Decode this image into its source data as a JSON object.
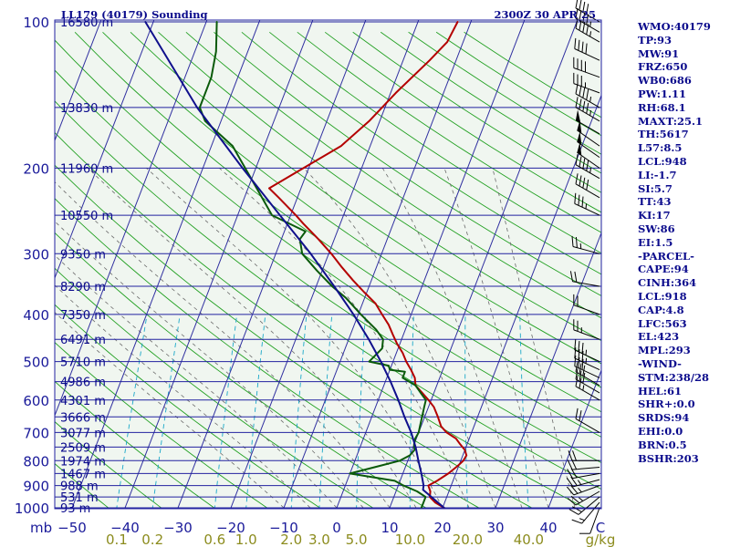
{
  "chart_data": {
    "type": "line",
    "title": "LL179 (40179) Sounding",
    "timestamp": "2300Z 30 APR 25",
    "pressure_axis": {
      "unit_label": "mb",
      "ticks": [
        100,
        200,
        300,
        400,
        500,
        600,
        700,
        800,
        900,
        1000
      ],
      "range": [
        1000,
        100
      ],
      "scale": "log"
    },
    "temperature_axis": {
      "unit": "°C",
      "ticks": [
        -50,
        -40,
        -30,
        -20,
        -10,
        0,
        10,
        20,
        30,
        40
      ],
      "skew": "skew-T"
    },
    "mixing_ratio_axis": {
      "unit": "g/kg",
      "ticks": [
        "0.1",
        "0.2",
        "0.6",
        "1.0",
        "2.0",
        "3.0",
        "5.0",
        "10.0",
        "20.0",
        "40.0"
      ]
    },
    "height_labels": [
      {
        "p": 100,
        "label": "16580 m"
      },
      {
        "p": 150,
        "label": "13830 m"
      },
      {
        "p": 200,
        "label": "11960 m"
      },
      {
        "p": 250,
        "label": "10550 m"
      },
      {
        "p": 300,
        "label": "9350 m"
      },
      {
        "p": 350,
        "label": "8290 m"
      },
      {
        "p": 400,
        "label": "7350 m"
      },
      {
        "p": 450,
        "label": "6491 m"
      },
      {
        "p": 500,
        "label": "5710 m"
      },
      {
        "p": 550,
        "label": "4986 m"
      },
      {
        "p": 600,
        "label": "4301 m"
      },
      {
        "p": 650,
        "label": "3666 m"
      },
      {
        "p": 700,
        "label": "3077 m"
      },
      {
        "p": 750,
        "label": "2509 m"
      },
      {
        "p": 800,
        "label": "1974 m"
      },
      {
        "p": 850,
        "label": "1467 m"
      },
      {
        "p": 900,
        "label": "988 m"
      },
      {
        "p": 950,
        "label": "531 m"
      },
      {
        "p": 1000,
        "label": "93 m"
      }
    ],
    "series": [
      {
        "id": "temperature",
        "color": "#b40000",
        "points": [
          [
            1000,
            20.3
          ],
          [
            975,
            18.2
          ],
          [
            950,
            16.8
          ],
          [
            925,
            16.5
          ],
          [
            900,
            15.7
          ],
          [
            880,
            17.0
          ],
          [
            850,
            18.6
          ],
          [
            820,
            19.8
          ],
          [
            800,
            20.5
          ],
          [
            780,
            20.7
          ],
          [
            760,
            20.0
          ],
          [
            740,
            18.7
          ],
          [
            720,
            17.5
          ],
          [
            700,
            15.3
          ],
          [
            680,
            13.8
          ],
          [
            650,
            12.5
          ],
          [
            620,
            11.0
          ],
          [
            600,
            9.5
          ],
          [
            580,
            7.8
          ],
          [
            560,
            6.0
          ],
          [
            540,
            5.3
          ],
          [
            520,
            4.0
          ],
          [
            500,
            2.5
          ],
          [
            480,
            1.2
          ],
          [
            460,
            -0.5
          ],
          [
            440,
            -2.0
          ],
          [
            420,
            -3.5
          ],
          [
            400,
            -5.5
          ],
          [
            380,
            -7.5
          ],
          [
            360,
            -10.5
          ],
          [
            340,
            -13.5
          ],
          [
            320,
            -16.5
          ],
          [
            300,
            -19.5
          ],
          [
            280,
            -23.0
          ],
          [
            260,
            -27.0
          ],
          [
            250,
            -29.0
          ],
          [
            230,
            -33.5
          ],
          [
            220,
            -36.0
          ],
          [
            200,
            -31.0
          ],
          [
            180,
            -25.5
          ],
          [
            160,
            -22.0
          ],
          [
            140,
            -19.0
          ],
          [
            120,
            -15.0
          ],
          [
            110,
            -13.0
          ],
          [
            100,
            -12.5
          ]
        ]
      },
      {
        "id": "dewpoint",
        "color": "#0a5a0a",
        "points": [
          [
            1000,
            16.0
          ],
          [
            975,
            16.0
          ],
          [
            950,
            16.0
          ],
          [
            925,
            14.0
          ],
          [
            900,
            11.0
          ],
          [
            880,
            9.0
          ],
          [
            850,
            0.0
          ],
          [
            820,
            5.0
          ],
          [
            800,
            8.5
          ],
          [
            780,
            10.0
          ],
          [
            760,
            10.5
          ],
          [
            740,
            10.0
          ],
          [
            720,
            9.8
          ],
          [
            700,
            10.0
          ],
          [
            680,
            9.8
          ],
          [
            650,
            9.5
          ],
          [
            620,
            9.2
          ],
          [
            600,
            9.0
          ],
          [
            580,
            7.5
          ],
          [
            560,
            6.0
          ],
          [
            540,
            3.0
          ],
          [
            525,
            3.0
          ],
          [
            520,
            0.0
          ],
          [
            510,
            -0.5
          ],
          [
            500,
            -4.5
          ],
          [
            470,
            -3.0
          ],
          [
            450,
            -3.5
          ],
          [
            430,
            -5.5
          ],
          [
            400,
            -9.5
          ],
          [
            370,
            -13.5
          ],
          [
            350,
            -17.0
          ],
          [
            325,
            -21.0
          ],
          [
            300,
            -25.0
          ],
          [
            280,
            -26.5
          ],
          [
            270,
            -26.0
          ],
          [
            250,
            -33.5
          ],
          [
            225,
            -37.5
          ],
          [
            200,
            -42.0
          ],
          [
            180,
            -46.0
          ],
          [
            160,
            -53.0
          ],
          [
            150,
            -55.0
          ],
          [
            130,
            -55.0
          ],
          [
            115,
            -56.0
          ],
          [
            100,
            -58.0
          ]
        ]
      },
      {
        "id": "parcel",
        "color": "#10108c",
        "points": [
          [
            1000,
            20.3
          ],
          [
            918,
            15.0
          ],
          [
            900,
            14.8
          ],
          [
            850,
            13.5
          ],
          [
            800,
            12.0
          ],
          [
            750,
            10.5
          ],
          [
            700,
            8.6
          ],
          [
            650,
            6.2
          ],
          [
            600,
            3.8
          ],
          [
            550,
            1.0
          ],
          [
            500,
            -2.3
          ],
          [
            450,
            -6.2
          ],
          [
            400,
            -10.9
          ],
          [
            350,
            -16.6
          ],
          [
            300,
            -23.4
          ],
          [
            250,
            -32.0
          ],
          [
            200,
            -42.5
          ],
          [
            150,
            -55.5
          ],
          [
            100,
            -71.5
          ]
        ]
      }
    ],
    "wind_barbs": [
      {
        "p": 1000,
        "dir": 200,
        "spd": 10
      },
      {
        "p": 975,
        "dir": 220,
        "spd": 15
      },
      {
        "p": 950,
        "dir": 230,
        "spd": 20
      },
      {
        "p": 925,
        "dir": 240,
        "spd": 25
      },
      {
        "p": 900,
        "dir": 250,
        "spd": 25
      },
      {
        "p": 875,
        "dir": 255,
        "spd": 25
      },
      {
        "p": 850,
        "dir": 260,
        "spd": 20
      },
      {
        "p": 825,
        "dir": 265,
        "spd": 20
      },
      {
        "p": 800,
        "dir": 270,
        "spd": 20
      },
      {
        "p": 700,
        "dir": 300,
        "spd": 20
      },
      {
        "p": 600,
        "dir": 300,
        "spd": 25
      },
      {
        "p": 580,
        "dir": 300,
        "spd": 30
      },
      {
        "p": 560,
        "dir": 300,
        "spd": 30
      },
      {
        "p": 540,
        "dir": 295,
        "spd": 30
      },
      {
        "p": 520,
        "dir": 295,
        "spd": 35
      },
      {
        "p": 500,
        "dir": 295,
        "spd": 35
      },
      {
        "p": 450,
        "dir": 290,
        "spd": 25
      },
      {
        "p": 400,
        "dir": 290,
        "spd": 20
      },
      {
        "p": 350,
        "dir": 280,
        "spd": 20
      },
      {
        "p": 300,
        "dir": 285,
        "spd": 25
      },
      {
        "p": 250,
        "dir": 295,
        "spd": 35
      },
      {
        "p": 230,
        "dir": 300,
        "spd": 40
      },
      {
        "p": 210,
        "dir": 300,
        "spd": 45
      },
      {
        "p": 200,
        "dir": 305,
        "spd": 50
      },
      {
        "p": 190,
        "dir": 305,
        "spd": 50
      },
      {
        "p": 180,
        "dir": 305,
        "spd": 50
      },
      {
        "p": 170,
        "dir": 300,
        "spd": 50
      },
      {
        "p": 160,
        "dir": 300,
        "spd": 45
      },
      {
        "p": 150,
        "dir": 300,
        "spd": 45
      },
      {
        "p": 140,
        "dir": 290,
        "spd": 35
      },
      {
        "p": 130,
        "dir": 290,
        "spd": 40
      },
      {
        "p": 120,
        "dir": 295,
        "spd": 40
      },
      {
        "p": 110,
        "dir": 300,
        "spd": 45
      },
      {
        "p": 105,
        "dir": 300,
        "spd": 45
      },
      {
        "p": 100,
        "dir": 300,
        "spd": 40
      }
    ]
  },
  "indices": {
    "wmo": "WMO:40179",
    "tp": "TP:93",
    "mw": "MW:91",
    "frz": "FRZ:650",
    "wb0": "WB0:686",
    "pw": "PW:1.11",
    "rh": "RH:68.1",
    "maxt": "MAXT:25.1",
    "th": "TH:5617",
    "l57": "L57:8.5",
    "lcl": "LCL:948",
    "li": "LI:-1.7",
    "si": "SI:5.7",
    "tt": "TT:43",
    "ki": "KI:17",
    "sw": "SW:86",
    "ei": "EI:1.5",
    "parcel_header": "-PARCEL-",
    "cape": "CAPE:94",
    "cinh": "CINH:364",
    "parcel_lcl": "LCL:918",
    "cap": "CAP:4.8",
    "lfc": "LFC:563",
    "el": "EL:423",
    "mpl": "MPL:293",
    "wind_header": "-WIND-",
    "stm": "STM:238/28",
    "hel": "HEL:61",
    "shr": "SHR+:0.0",
    "srds": "SRDS:94",
    "ehi": "EHI:0.0",
    "brn": "BRN:0.5",
    "bshr": "BSHR:203"
  },
  "colors": {
    "background": "#ffffff",
    "plot_background": "#f0f6f0",
    "isobar": "#2222a0",
    "isotherm": "#3030a0",
    "dry_adiabat": "#22a022",
    "moist_adiabat": "#6a6a6a",
    "mixing_ratio": "#1aa8c8",
    "temperature": "#b40000",
    "dewpoint": "#0a5a0a",
    "parcel": "#10108c",
    "label_blue": "#0a0a8c",
    "label_olive": "#8c8c1e",
    "axis_text": "#1a1a9a"
  }
}
